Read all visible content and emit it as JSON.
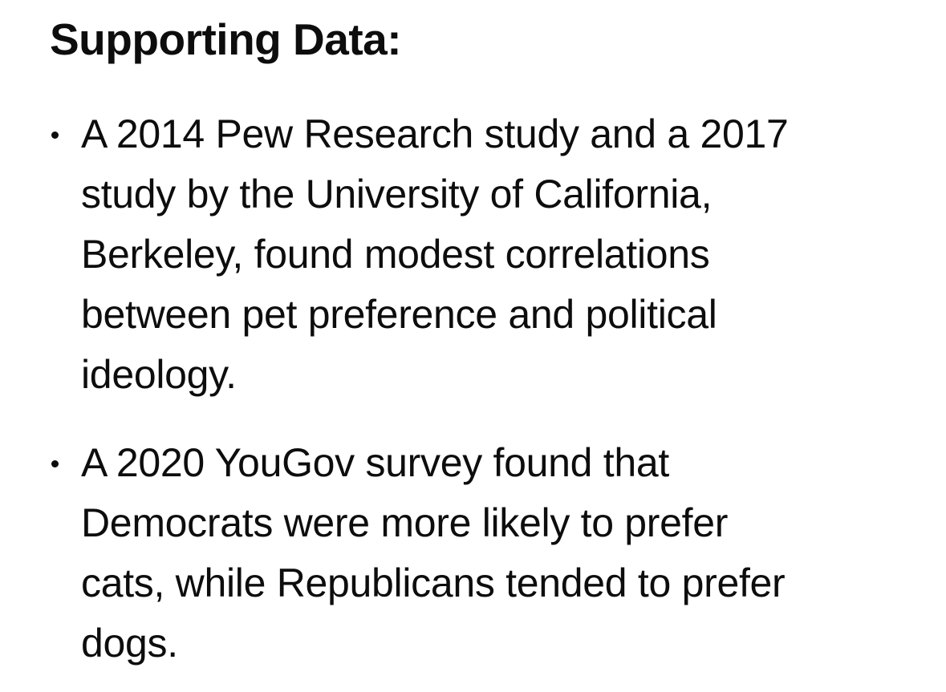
{
  "heading": "Supporting Data:",
  "bullets": [
    {
      "lines": [
        "A 2014 Pew Research study and a 2017",
        "study by the University of California,",
        "Berkeley, found modest correlations",
        "between pet preference and political",
        "ideology."
      ]
    },
    {
      "lines": [
        "A 2020 YouGov survey found that",
        "Democrats were more likely to prefer",
        "cats, while Republicans tended to prefer",
        "dogs."
      ]
    }
  ]
}
